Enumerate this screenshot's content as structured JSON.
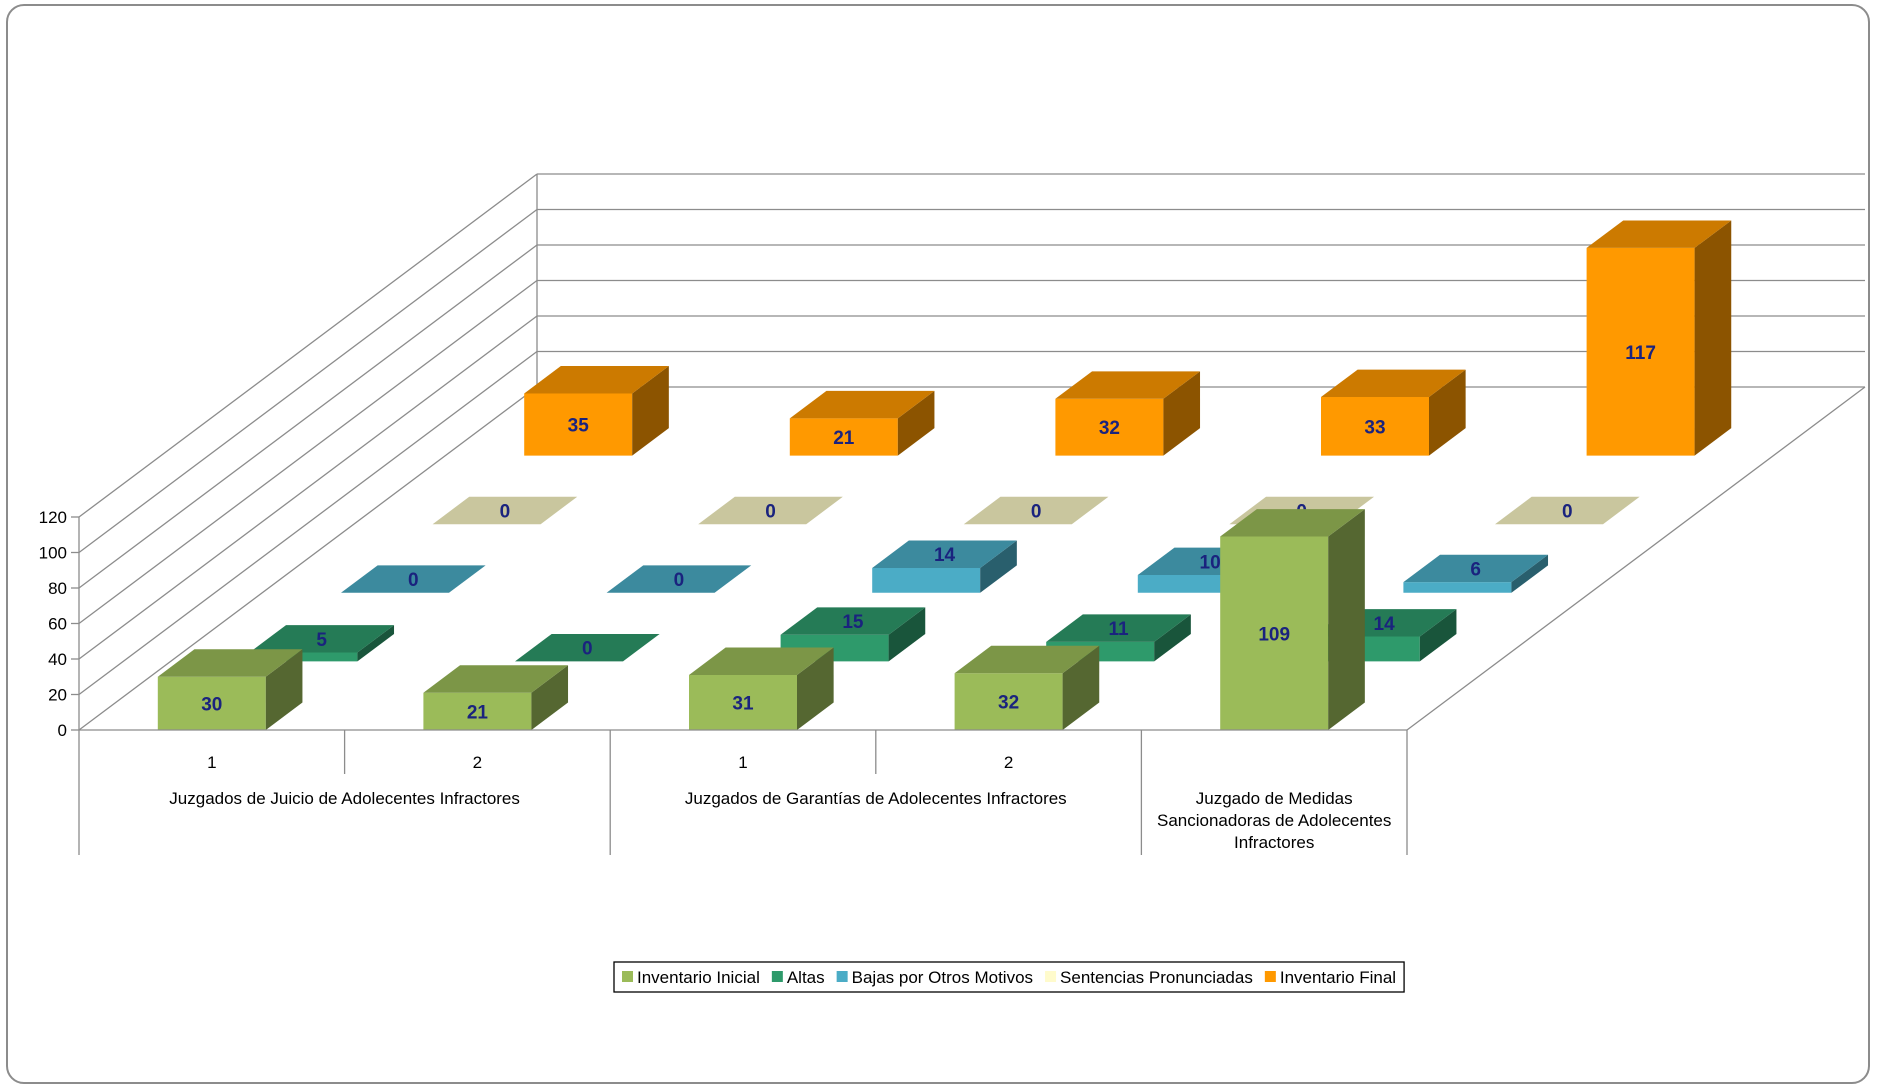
{
  "chart_data": {
    "type": "bar",
    "variant": "3d-column",
    "ylim": [
      0,
      120
    ],
    "yticks": [
      "0",
      "20",
      "40",
      "60",
      "80",
      "100",
      "120"
    ],
    "categories": [
      "1",
      "2",
      "1",
      "2",
      ""
    ],
    "groups": [
      {
        "label": "Juzgados de Juicio de Adolecentes Infractores",
        "lines": [
          "Juzgados de Juicio de Adolecentes Infractores"
        ]
      },
      {
        "label": "Juzgados de Garantías de Adolecentes Infractores",
        "lines": [
          "Juzgados de Garantías de Adolecentes Infractores"
        ]
      },
      {
        "label": "Juzgado de Medidas Sancionadoras de Adolecentes Infractores",
        "lines": [
          "Juzgado de Medidas",
          "Sancionadoras de Adolecentes",
          "Infractores"
        ]
      }
    ],
    "series": [
      {
        "name": "Inventario Inicial",
        "color": "#9bbb59",
        "values": [
          30,
          21,
          31,
          32,
          109
        ]
      },
      {
        "name": "Altas",
        "color": "#2e9a6b",
        "values": [
          5,
          0,
          15,
          11,
          14
        ]
      },
      {
        "name": "Bajas por Otros Motivos",
        "color": "#4bacc6",
        "values": [
          0,
          0,
          14,
          10,
          6
        ]
      },
      {
        "name": "Sentencias Pronunciadas",
        "color": "#fffbcc",
        "values": [
          0,
          0,
          0,
          0,
          0
        ]
      },
      {
        "name": "Inventario Final",
        "color": "#ff9900",
        "values": [
          35,
          21,
          32,
          33,
          117
        ]
      }
    ],
    "legend_position": "bottom",
    "grid": true
  }
}
